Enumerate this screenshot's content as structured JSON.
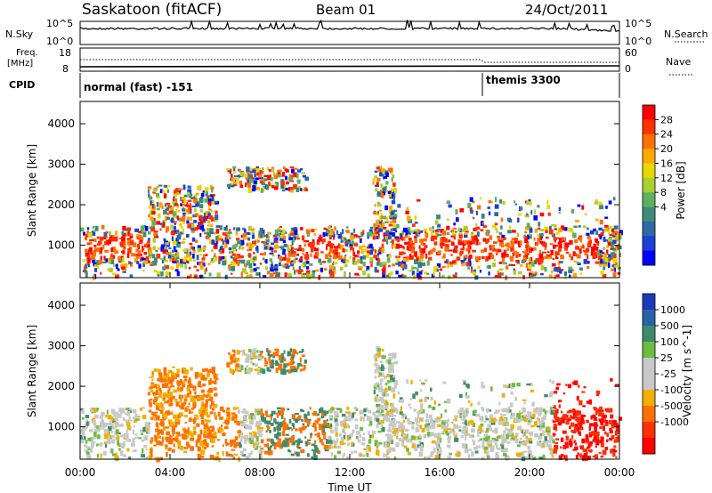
{
  "header": {
    "station": "Saskatoon (fitACF)",
    "beam": "Beam 01",
    "date": "24/Oct/2011"
  },
  "chart_data": [
    {
      "type": "line",
      "name": "noise-panel",
      "left_label": "N.Sky",
      "right_label": "N.Search",
      "left_ticks": [
        "10^5",
        "10^0"
      ],
      "right_ticks": [
        "10^5",
        "10^0"
      ]
    },
    {
      "type": "line",
      "name": "freq-panel",
      "left_label": "Freq.",
      "left_unit": "[MHz]",
      "right_label": "Nave",
      "left_ticks": [
        "18",
        "8"
      ],
      "right_ticks": [
        "60",
        "0"
      ]
    },
    {
      "type": "table",
      "name": "cpid-strip",
      "label": "CPID",
      "modes": [
        {
          "text": "normal (fast) -151",
          "start_hour": 0
        },
        {
          "text": "themis 3300",
          "start_hour": 18
        }
      ]
    },
    {
      "type": "heatmap",
      "name": "power",
      "ylabel": "Slant Range [km]",
      "yticks": [
        1000,
        2000,
        3000,
        4000
      ],
      "ylim": [
        200,
        4550
      ],
      "colorbar_label": "Power [dB]",
      "colorbar_ticks": [
        "28",
        "24",
        "20",
        "16",
        "12",
        "8",
        "4"
      ],
      "colors": [
        "#ff0000",
        "#ff3000",
        "#ff7000",
        "#ffa800",
        "#e8d800",
        "#a8d030",
        "#60b060",
        "#3c8c78",
        "#2c6aa8",
        "#1a40d8",
        "#0000ff"
      ]
    },
    {
      "type": "heatmap",
      "name": "velocity",
      "ylabel": "Slant Range [km]",
      "yticks": [
        1000,
        2000,
        3000,
        4000
      ],
      "ylim": [
        200,
        4550
      ],
      "colorbar_label": "Velocity [m s^-1]",
      "colorbar_ticks": [
        "1000",
        "500",
        "100",
        "25",
        "-25",
        "-100",
        "-500",
        "-1000"
      ],
      "colors": [
        "#1a3ab8",
        "#2a62a8",
        "#3c8c6c",
        "#6cbc40",
        "#c8c8c8",
        "#c8c8c8",
        "#f0b000",
        "#ff7000",
        "#ff3000",
        "#ff0000"
      ]
    }
  ],
  "x_axis": {
    "label": "Time UT",
    "ticks": [
      "00:00",
      "04:00",
      "08:00",
      "12:00",
      "16:00",
      "20:00",
      "00:00"
    ],
    "range_hours": [
      0,
      24
    ]
  }
}
